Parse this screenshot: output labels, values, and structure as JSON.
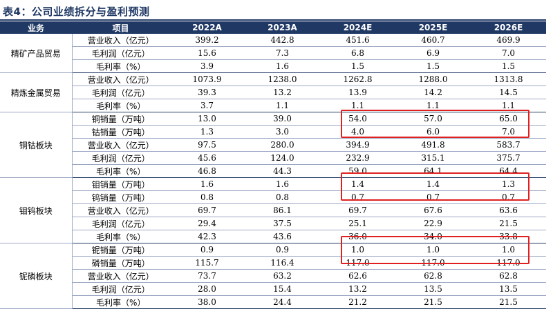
{
  "title": "表4：公司业绩拆分与盈利预测",
  "columns": [
    "业务",
    "项目",
    "2022A",
    "2023A",
    "2024E",
    "2025E",
    "2026E"
  ],
  "groups": [
    {
      "name": "精矿产品贸易",
      "rows": [
        {
          "item": "营业收入（亿元）",
          "values": [
            "399.2",
            "442.8",
            "451.6",
            "460.7",
            "469.9"
          ]
        },
        {
          "item": "毛利润（亿元）",
          "values": [
            "15.6",
            "7.3",
            "6.8",
            "6.9",
            "7.0"
          ]
        },
        {
          "item": "毛利率（%）",
          "values": [
            "3.9",
            "1.6",
            "1.5",
            "1.5",
            "1.5"
          ]
        }
      ]
    },
    {
      "name": "精炼金属贸易",
      "rows": [
        {
          "item": "营业收入（亿元）",
          "values": [
            "1073.9",
            "1238.0",
            "1262.8",
            "1288.0",
            "1313.8"
          ]
        },
        {
          "item": "毛利润（亿元）",
          "values": [
            "39.3",
            "13.2",
            "13.9",
            "14.2",
            "14.5"
          ]
        },
        {
          "item": "毛利率（%）",
          "values": [
            "3.7",
            "1.1",
            "1.1",
            "1.1",
            "1.1"
          ]
        }
      ]
    },
    {
      "name": "铜钴板块",
      "rows": [
        {
          "item": "铜销量（万吨）",
          "values": [
            "13.0",
            "39.0",
            "54.0",
            "57.0",
            "65.0"
          ]
        },
        {
          "item": "钴销量（万吨）",
          "values": [
            "1.3",
            "3.0",
            "4.0",
            "6.0",
            "7.0"
          ]
        },
        {
          "item": "营业收入（亿元）",
          "values": [
            "97.5",
            "280.0",
            "394.9",
            "491.8",
            "583.7"
          ]
        },
        {
          "item": "毛利润（亿元）",
          "values": [
            "45.6",
            "124.0",
            "232.9",
            "315.1",
            "375.7"
          ]
        },
        {
          "item": "毛利率（%）",
          "values": [
            "46.8",
            "44.3",
            "59.0",
            "64.1",
            "64.4"
          ]
        }
      ]
    },
    {
      "name": "钼钨板块",
      "rows": [
        {
          "item": "钼销量（万吨）",
          "values": [
            "1.6",
            "1.6",
            "1.4",
            "1.4",
            "1.3"
          ]
        },
        {
          "item": "钨销量（万吨）",
          "values": [
            "0.8",
            "0.8",
            "0.7",
            "0.7",
            "0.7"
          ]
        },
        {
          "item": "营业收入（亿元）",
          "values": [
            "69.7",
            "86.1",
            "69.7",
            "67.6",
            "63.6"
          ]
        },
        {
          "item": "毛利润（亿元）",
          "values": [
            "29.4",
            "37.5",
            "25.1",
            "22.9",
            "21.5"
          ]
        },
        {
          "item": "毛利率（%）",
          "values": [
            "42.3",
            "43.6",
            "36.0",
            "34.0",
            "33.8"
          ]
        }
      ]
    },
    {
      "name": "铌磷板块",
      "rows": [
        {
          "item": "铌销量（万吨）",
          "values": [
            "0.9",
            "0.9",
            "1.0",
            "1.0",
            "1.0"
          ]
        },
        {
          "item": "磷销量（万吨）",
          "values": [
            "115.7",
            "116.4",
            "117.0",
            "117.0",
            "117.0"
          ]
        },
        {
          "item": "营业收入（亿元）",
          "values": [
            "73.7",
            "63.2",
            "62.6",
            "62.8",
            "62.8"
          ]
        },
        {
          "item": "毛利润（亿元）",
          "values": [
            "28.0",
            "15.4",
            "13.2",
            "13.5",
            "13.5"
          ]
        },
        {
          "item": "毛利率（%）",
          "values": [
            "38.0",
            "24.4",
            "21.2",
            "21.5",
            "21.5"
          ]
        }
      ]
    }
  ],
  "highlight_color": "#e02020",
  "header_color": "#1f3864"
}
